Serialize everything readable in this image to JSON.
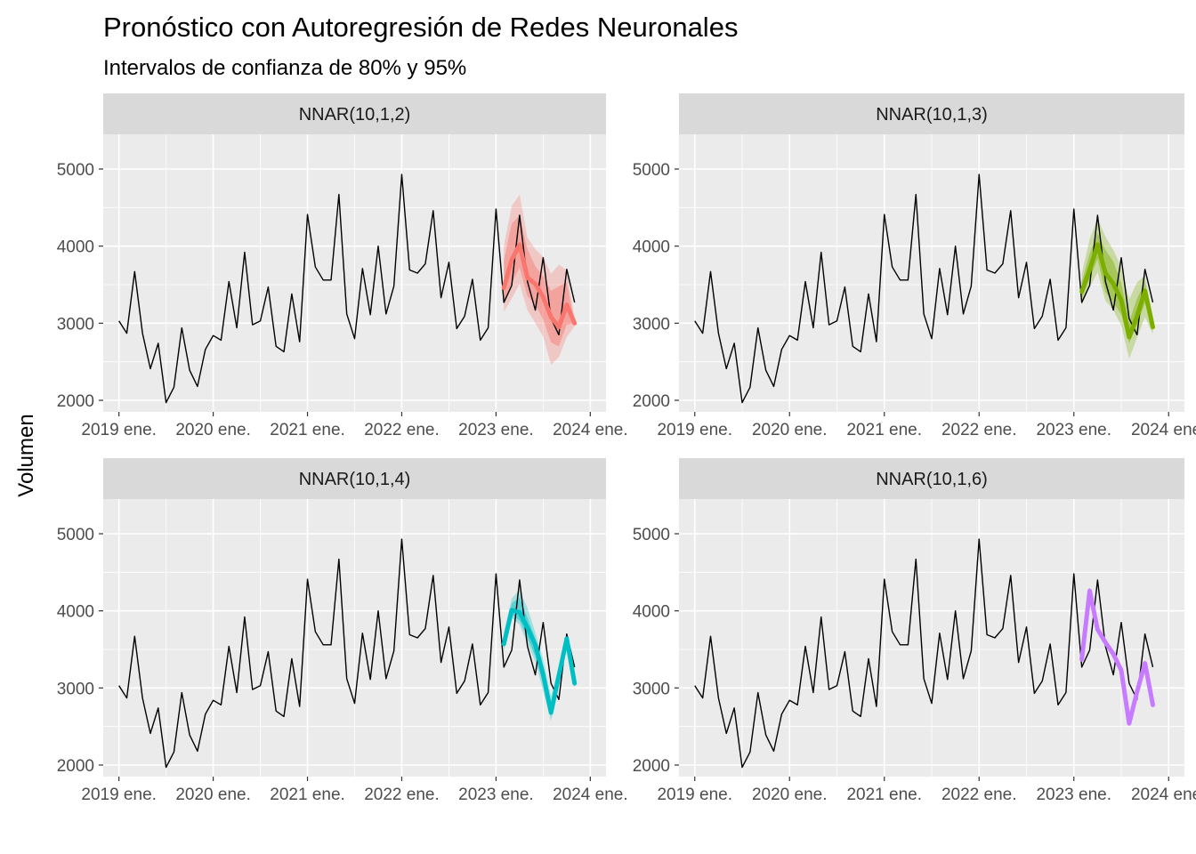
{
  "chart_data": {
    "type": "line",
    "title": "Pronóstico con Autoregresión de Redes Neuronales",
    "subtitle": "Intervalos de confianza de 80% y 95%",
    "xlabel": "",
    "ylabel": "Volumen",
    "ylim": [
      1850,
      5450
    ],
    "xlim": [
      "2018-11",
      "2024-03"
    ],
    "y_ticks": [
      2000,
      3000,
      4000,
      5000
    ],
    "y_tick_labels": [
      "2000",
      "3000",
      "4000",
      "5000"
    ],
    "x_ticks": [
      "2019-01",
      "2020-01",
      "2021-01",
      "2022-01",
      "2023-01",
      "2024-01"
    ],
    "x_tick_labels": [
      "2019 ene.",
      "2020 ene.",
      "2021 ene.",
      "2022 ene.",
      "2023 ene.",
      "2024 ene."
    ],
    "grid": true,
    "legend": "none",
    "history": {
      "start": "2019-01",
      "frequency": "monthly",
      "color": "#000000",
      "values": [
        3030,
        2870,
        3670,
        2870,
        2410,
        2740,
        1970,
        2170,
        2940,
        2390,
        2180,
        2660,
        2840,
        2780,
        3540,
        2940,
        3920,
        2980,
        3030,
        3470,
        2700,
        2630,
        3380,
        2760,
        4410,
        3730,
        3560,
        3560,
        4670,
        3120,
        2800,
        3710,
        3110,
        4000,
        3120,
        3480,
        4930,
        3690,
        3650,
        3770,
        4460,
        3330,
        3790,
        2930,
        3090,
        3570,
        2780,
        2940,
        4480,
        3270,
        3490,
        4400,
        3540,
        3170,
        3850,
        3060,
        2850,
        3700,
        3270
      ]
    },
    "panels": [
      {
        "name": "NNAR(10,1,2)",
        "color": "#F8766D",
        "forecast": {
          "start": "2023-02",
          "mean": [
            3460,
            3820,
            4020,
            3590,
            3510,
            3340,
            3080,
            2950,
            3240,
            3000
          ],
          "lo80": [
            3290,
            3520,
            3720,
            3350,
            3240,
            3050,
            2750,
            2700,
            2980,
            3000
          ],
          "hi80": [
            3820,
            4290,
            4400,
            3960,
            3740,
            3610,
            3420,
            3480,
            3530,
            3020
          ],
          "lo95": [
            3150,
            3320,
            3510,
            3170,
            3000,
            2830,
            2460,
            2560,
            2820,
            2960
          ],
          "hi95": [
            4000,
            4520,
            4670,
            4110,
            3960,
            3860,
            3640,
            3760,
            3690,
            3060
          ]
        }
      },
      {
        "name": "NNAR(10,1,3)",
        "color": "#7CAE00",
        "forecast": {
          "start": "2023-02",
          "mean": [
            3410,
            3690,
            4020,
            3650,
            3510,
            3300,
            2820,
            3090,
            3420,
            2950
          ],
          "lo80": [
            3320,
            3580,
            3830,
            3400,
            3270,
            3110,
            2740,
            2980,
            3260,
            2900
          ],
          "hi80": [
            3540,
            3900,
            4170,
            3950,
            3800,
            3520,
            3020,
            3320,
            3530,
            3000
          ],
          "lo95": [
            3230,
            3470,
            3660,
            3290,
            3170,
            2970,
            2540,
            2810,
            3080,
            2860
          ],
          "hi95": [
            3640,
            4090,
            4360,
            4120,
            3950,
            3730,
            3310,
            3530,
            3620,
            3080
          ]
        }
      },
      {
        "name": "NNAR(10,1,4)",
        "color": "#00BFC4",
        "forecast": {
          "start": "2023-02",
          "mean": [
            3570,
            4010,
            3980,
            3780,
            3560,
            3170,
            2680,
            3160,
            3640,
            3060
          ],
          "lo80": [
            3520,
            3960,
            3870,
            3650,
            3410,
            3060,
            2650,
            3070,
            3570,
            3020
          ],
          "hi80": [
            3640,
            4100,
            4170,
            3910,
            3640,
            3290,
            2800,
            3240,
            3670,
            3100
          ],
          "lo95": [
            3470,
            3910,
            3820,
            3570,
            3340,
            2960,
            2570,
            3020,
            3520,
            2990
          ],
          "hi95": [
            3720,
            4160,
            4270,
            4040,
            3720,
            3370,
            2890,
            3300,
            3700,
            3120
          ]
        }
      },
      {
        "name": "NNAR(10,1,6)",
        "color": "#C77CFF",
        "forecast": {
          "start": "2023-02",
          "mean": [
            3370,
            4260,
            3760,
            3590,
            3440,
            3230,
            2540,
            2950,
            3320,
            2780
          ],
          "lo80": [
            3340,
            4240,
            3740,
            3570,
            3410,
            3200,
            2520,
            2930,
            3300,
            2760
          ],
          "hi80": [
            3400,
            4290,
            3790,
            3610,
            3470,
            3260,
            2560,
            2980,
            3340,
            2810
          ],
          "lo95": [
            3320,
            4220,
            3720,
            3560,
            3400,
            3180,
            2510,
            2910,
            3280,
            2750
          ],
          "hi95": [
            3420,
            4310,
            3810,
            3630,
            3490,
            3280,
            2580,
            3000,
            3360,
            2830
          ]
        }
      }
    ]
  }
}
